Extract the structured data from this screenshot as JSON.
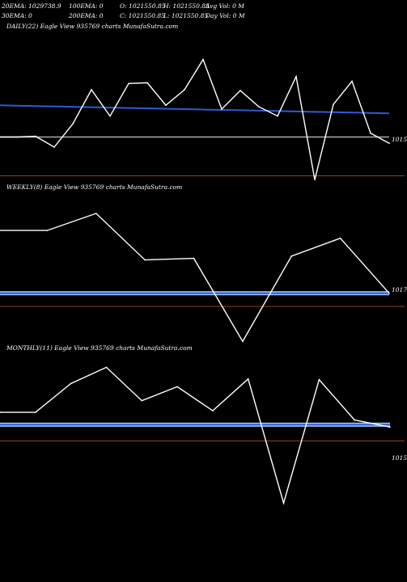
{
  "header": {
    "row1": {
      "ema20": "20EMA: 1029738.9",
      "ema100": "100EMA: 0",
      "open": "O: 1021550.85",
      "high": "H: 1021550.85",
      "avg_vol": "Avg Vol: 0  M"
    },
    "row2": {
      "ema30": "30EMA: 0",
      "ema200": "200EMA: 0",
      "close": "C: 1021550.85",
      "low": "L: 1021550.85",
      "day_vol": "Day Vol: 0  M"
    }
  },
  "colors": {
    "background": "#000000",
    "price_line": "#ffffff",
    "ema_blue": "#2a5bd7",
    "light_band": "#9fc4ff",
    "gray_line": "#aaaaaa",
    "baseline": "#8b4513"
  },
  "chart_data": [
    {
      "type": "line",
      "title": "DAILY(22) Eagle   View  935769 charts MunafaSutra.com",
      "price_label": "1015",
      "x": [
        1,
        2,
        3,
        4,
        5,
        6,
        7,
        8,
        9,
        10,
        11,
        12,
        13,
        14,
        15,
        16,
        17,
        18,
        19,
        20,
        21,
        22
      ],
      "series": [
        {
          "values": [
            55,
            55,
            56,
            42,
            72,
            116,
            82,
            124,
            125,
            96,
            116,
            155,
            91,
            115,
            94,
            82,
            133,
            0,
            97,
            127,
            60,
            47
          ]
        },
        {
          "values": [
            96,
            95.5,
            95,
            94.5,
            94,
            93.5,
            93,
            92.5,
            92,
            91.5,
            91,
            90.5,
            90,
            89.5,
            89,
            88.5,
            88,
            87.5,
            87,
            86.5,
            86,
            85.5
          ]
        },
        {
          "values": [
            55,
            55,
            55,
            55,
            55,
            55,
            55,
            55,
            55,
            55,
            55,
            55,
            55,
            55,
            55,
            55,
            55,
            55,
            55,
            55,
            55,
            55
          ]
        }
      ],
      "ylim": [
        -8,
        190
      ],
      "baseline": 5
    },
    {
      "type": "line",
      "title": "WEEKLY(8) Eagle   View  935769 charts MunafaSutra.com",
      "price_label": "1017",
      "x": [
        1,
        2,
        3,
        4,
        5,
        6,
        7,
        8,
        9
      ],
      "series": [
        {
          "values": [
            143,
            143,
            165,
            105,
            107,
            0,
            110,
            133,
            62
          ]
        },
        {
          "values": [
            62,
            62,
            62,
            62,
            62,
            62,
            62,
            62,
            62
          ]
        }
      ],
      "ylim": [
        -8,
        190
      ],
      "baseline": 45
    },
    {
      "type": "line",
      "title": "MONTHLY(11) Eagle   View  935769 charts MunafaSutra.com",
      "price_label": "1015",
      "x": [
        1,
        2,
        3,
        4,
        5,
        6,
        7,
        8,
        9,
        10,
        11,
        12
      ],
      "series": [
        {
          "values": [
            117,
            117,
            154,
            175,
            132,
            150,
            119,
            160,
            0,
            159,
            107,
            98
          ]
        },
        {
          "values": [
            101,
            101,
            101,
            101,
            101,
            101,
            101,
            101,
            101,
            101,
            101,
            101
          ]
        }
      ],
      "ylim": [
        -8,
        190
      ],
      "baseline": 80
    }
  ]
}
